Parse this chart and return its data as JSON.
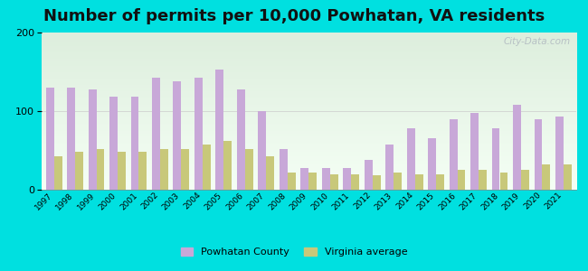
{
  "title": "Number of permits per 10,000 Powhatan, VA residents",
  "years": [
    1997,
    1998,
    1999,
    2000,
    2001,
    2002,
    2003,
    2004,
    2005,
    2006,
    2007,
    2008,
    2009,
    2010,
    2011,
    2012,
    2013,
    2014,
    2015,
    2016,
    2017,
    2018,
    2019,
    2020,
    2021
  ],
  "powhatan": [
    130,
    130,
    128,
    118,
    118,
    143,
    138,
    143,
    153,
    128,
    100,
    52,
    28,
    28,
    28,
    38,
    58,
    78,
    65,
    90,
    98,
    78,
    108,
    90,
    93
  ],
  "virginia": [
    42,
    48,
    52,
    48,
    48,
    52,
    52,
    58,
    62,
    52,
    42,
    22,
    22,
    20,
    20,
    18,
    22,
    20,
    20,
    25,
    25,
    22,
    25,
    32,
    32
  ],
  "powhatan_color": "#c8a8d8",
  "virginia_color": "#c8c87a",
  "background_outer": "#00e0e0",
  "ylim": [
    0,
    200
  ],
  "yticks": [
    0,
    100,
    200
  ],
  "legend_powhatan": "Powhatan County",
  "legend_virginia": "Virginia average",
  "bar_width": 0.38,
  "title_fontsize": 13,
  "watermark": "City-Data.com"
}
